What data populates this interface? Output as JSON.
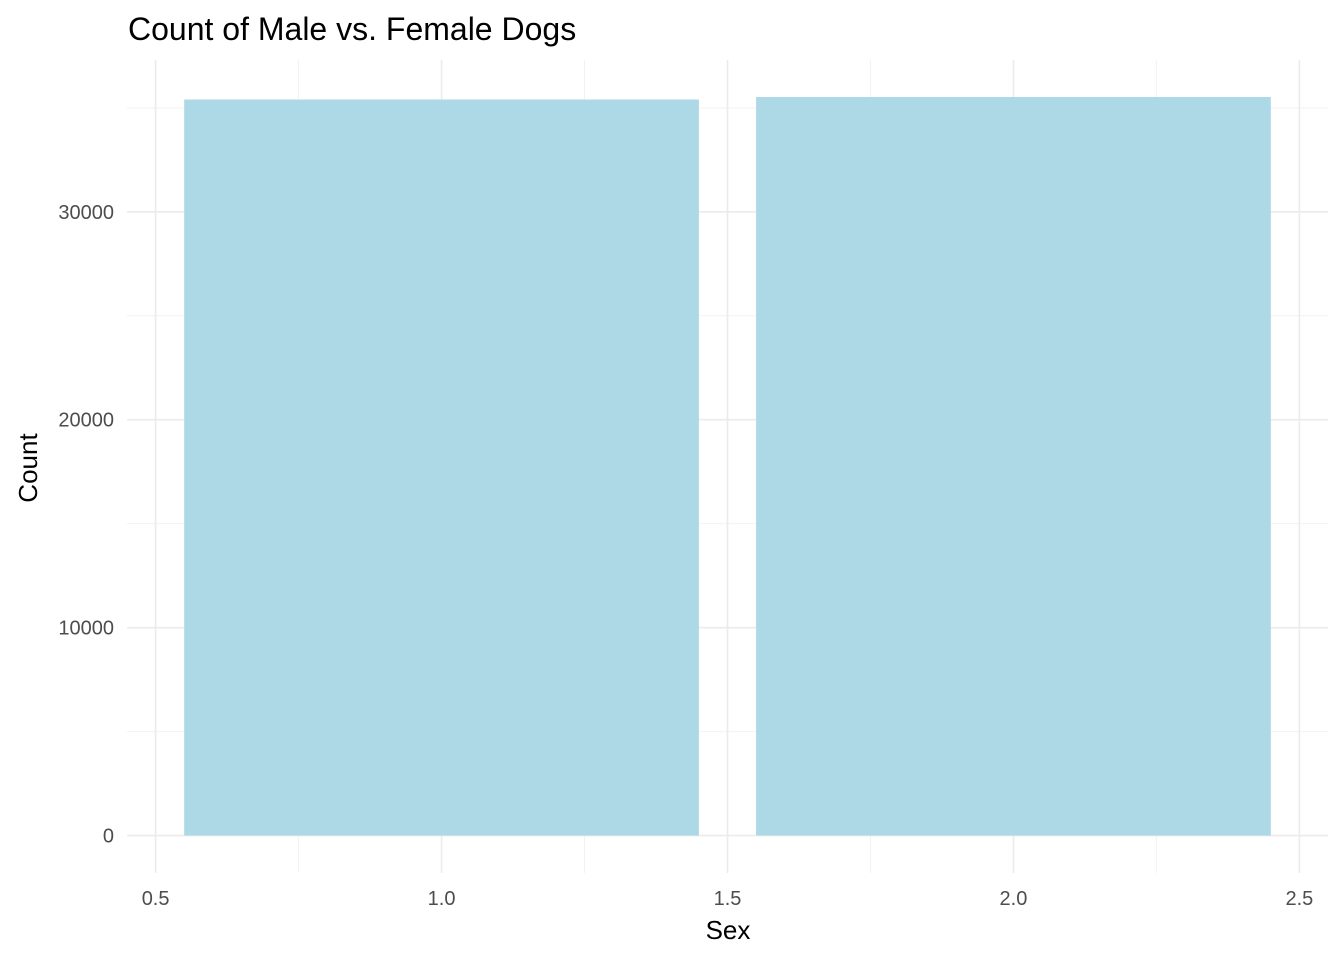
{
  "chart_data": {
    "type": "bar",
    "title": "Count of Male vs. Female Dogs",
    "xlabel": "Sex",
    "ylabel": "Count",
    "x": [
      1,
      2
    ],
    "values": [
      35400,
      35520
    ],
    "bar_width": 0.9,
    "xlim": [
      0.45,
      2.55
    ],
    "ylim": [
      -1800,
      37300
    ],
    "x_ticks": [
      0.5,
      1.0,
      1.5,
      2.0,
      2.5
    ],
    "x_tick_labels": [
      "0.5",
      "1.0",
      "1.5",
      "2.0",
      "2.5"
    ],
    "y_ticks": [
      0,
      10000,
      20000,
      30000
    ],
    "y_tick_labels": [
      "0",
      "10000",
      "20000",
      "30000"
    ],
    "grid": true,
    "legend": "none",
    "bar_color": "#add8e6"
  }
}
